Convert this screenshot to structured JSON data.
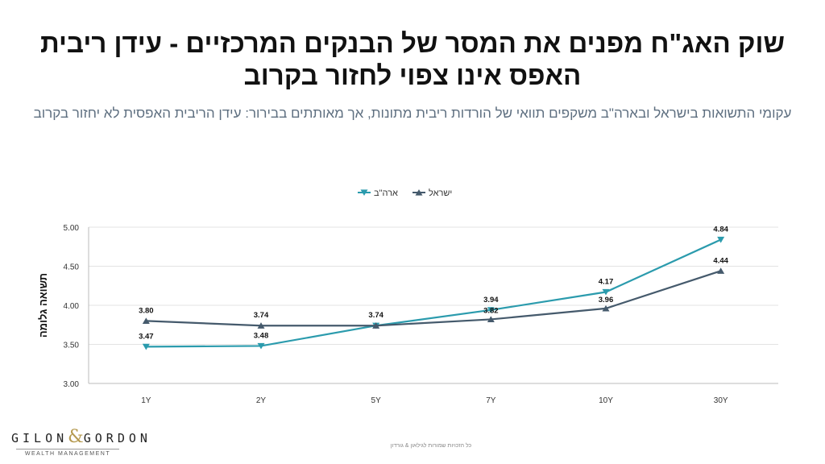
{
  "title": "שוק האג\"ח מפנים את המסר של הבנקים המרכזיים - עידן ריבית האפס אינו צפוי לחזור בקרוב",
  "subtitle": "עקומי התשואות בישראל ובארה\"ב משקפים תוואי של הורדות ריבית מתונות, אך מאותתים בבירור: עידן הריבית האפסית לא יחזור בקרוב",
  "logo": {
    "main_left": "GILON",
    "amp": "&",
    "main_right": "GORDON",
    "sub": "WEALTH MANAGEMENT"
  },
  "footer": "כל הזכויות שמורות לגילאון & גורדון",
  "colors": {
    "usa": "#2b9bad",
    "israel": "#455a6c"
  },
  "chart_data": {
    "type": "line",
    "categories": [
      "1Y",
      "2Y",
      "5Y",
      "7Y",
      "10Y",
      "30Y"
    ],
    "ylabel": "תשואה גלומה",
    "ylim": [
      3.0,
      5.0
    ],
    "yticks": [
      "3.00",
      "3.50",
      "4.00",
      "4.50",
      "5.00"
    ],
    "legend_position": "top-center",
    "series": [
      {
        "name": "ארה\"ב",
        "marker": "triangle-down",
        "values": [
          3.47,
          3.48,
          3.74,
          3.94,
          4.17,
          4.84
        ],
        "labels": [
          "3.47",
          "3.48",
          "",
          "3.94",
          "4.17",
          "4.84"
        ]
      },
      {
        "name": "ישראל",
        "marker": "triangle-up",
        "values": [
          3.8,
          3.74,
          3.74,
          3.82,
          3.96,
          4.44
        ],
        "labels": [
          "3.80",
          "3.74",
          "3.74",
          "3.82",
          "3.96",
          "4.44"
        ]
      }
    ]
  }
}
